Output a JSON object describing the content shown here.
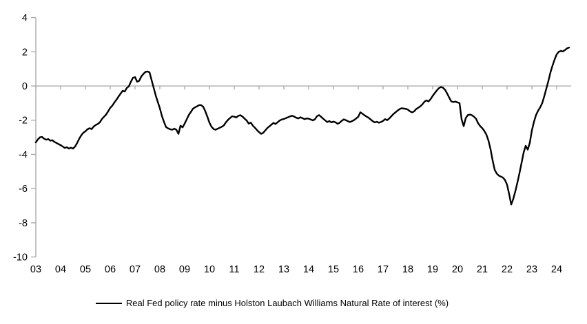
{
  "chart_data": {
    "type": "line",
    "title": "",
    "xlabel": "",
    "ylabel": "",
    "ylim": [
      -10,
      4
    ],
    "x_start_year": 2003,
    "frequency": "monthly",
    "gridlines": false,
    "legend_position": "bottom-center",
    "background_color": "#ffffff",
    "axis_color": "#a6a6a6",
    "line_color": "#000000",
    "y_tick_labels": [
      "4",
      "2",
      "0",
      "-2",
      "-4",
      "-6",
      "-8",
      "-10"
    ],
    "y_tick_values": [
      4,
      2,
      0,
      -2,
      -4,
      -6,
      -8,
      -10
    ],
    "x_tick_labels": [
      "03",
      "04",
      "05",
      "06",
      "07",
      "08",
      "09",
      "10",
      "11",
      "12",
      "13",
      "14",
      "15",
      "16",
      "17",
      "18",
      "19",
      "20",
      "21",
      "22",
      "23",
      "24"
    ],
    "series": [
      {
        "name": "Real Fed policy rate minus Holston Laubach Williams Natural Rate of interest (%)",
        "start": "2003-01",
        "values": [
          -3.3,
          -3.12,
          -3.0,
          -2.98,
          -3.08,
          -3.14,
          -3.1,
          -3.2,
          -3.17,
          -3.27,
          -3.33,
          -3.4,
          -3.46,
          -3.54,
          -3.62,
          -3.58,
          -3.66,
          -3.61,
          -3.66,
          -3.54,
          -3.33,
          -3.08,
          -2.88,
          -2.73,
          -2.65,
          -2.53,
          -2.47,
          -2.52,
          -2.37,
          -2.28,
          -2.22,
          -2.12,
          -1.93,
          -1.8,
          -1.67,
          -1.48,
          -1.28,
          -1.15,
          -0.97,
          -0.8,
          -0.62,
          -0.45,
          -0.28,
          -0.32,
          -0.12,
          -0.02,
          0.25,
          0.48,
          0.52,
          0.25,
          0.3,
          0.55,
          0.7,
          0.82,
          0.85,
          0.8,
          0.35,
          -0.1,
          -0.55,
          -0.93,
          -1.3,
          -1.75,
          -2.1,
          -2.4,
          -2.48,
          -2.53,
          -2.56,
          -2.5,
          -2.56,
          -2.8,
          -2.32,
          -2.42,
          -2.2,
          -1.95,
          -1.7,
          -1.52,
          -1.33,
          -1.25,
          -1.19,
          -1.12,
          -1.12,
          -1.22,
          -1.48,
          -1.8,
          -2.15,
          -2.38,
          -2.52,
          -2.56,
          -2.5,
          -2.44,
          -2.38,
          -2.3,
          -2.12,
          -1.98,
          -1.87,
          -1.77,
          -1.8,
          -1.84,
          -1.74,
          -1.71,
          -1.79,
          -1.91,
          -2.02,
          -2.2,
          -2.14,
          -2.32,
          -2.44,
          -2.58,
          -2.7,
          -2.8,
          -2.74,
          -2.6,
          -2.46,
          -2.36,
          -2.26,
          -2.16,
          -2.22,
          -2.12,
          -2.02,
          -1.96,
          -1.93,
          -1.88,
          -1.83,
          -1.78,
          -1.74,
          -1.79,
          -1.86,
          -1.9,
          -1.83,
          -1.88,
          -1.94,
          -1.9,
          -1.91,
          -1.96,
          -2.01,
          -1.95,
          -1.77,
          -1.7,
          -1.8,
          -1.91,
          -2.01,
          -2.11,
          -2.05,
          -2.13,
          -2.08,
          -2.13,
          -2.21,
          -2.15,
          -2.04,
          -1.95,
          -2.0,
          -2.06,
          -2.11,
          -2.05,
          -1.99,
          -1.9,
          -1.8,
          -1.54,
          -1.62,
          -1.71,
          -1.79,
          -1.86,
          -1.96,
          -2.06,
          -2.13,
          -2.09,
          -2.15,
          -2.11,
          -2.04,
          -1.94,
          -2.0,
          -1.9,
          -1.77,
          -1.64,
          -1.54,
          -1.44,
          -1.35,
          -1.3,
          -1.32,
          -1.34,
          -1.38,
          -1.48,
          -1.54,
          -1.49,
          -1.35,
          -1.27,
          -1.19,
          -1.08,
          -0.92,
          -0.84,
          -0.9,
          -0.77,
          -0.58,
          -0.42,
          -0.26,
          -0.13,
          -0.06,
          -0.1,
          -0.22,
          -0.44,
          -0.68,
          -0.9,
          -0.94,
          -0.91,
          -0.96,
          -1.0,
          -1.95,
          -2.35,
          -1.88,
          -1.7,
          -1.67,
          -1.71,
          -1.8,
          -1.92,
          -2.18,
          -2.35,
          -2.47,
          -2.63,
          -2.85,
          -3.2,
          -3.7,
          -4.35,
          -4.9,
          -5.12,
          -5.24,
          -5.3,
          -5.36,
          -5.5,
          -5.78,
          -6.32,
          -6.93,
          -6.6,
          -6.15,
          -5.65,
          -5.1,
          -4.5,
          -3.9,
          -3.5,
          -3.72,
          -3.32,
          -2.6,
          -2.1,
          -1.7,
          -1.45,
          -1.25,
          -1.0,
          -0.6,
          -0.15,
          0.3,
          0.8,
          1.2,
          1.55,
          1.85,
          2.0,
          2.05,
          2.02,
          2.1,
          2.2,
          2.25
        ]
      }
    ]
  }
}
